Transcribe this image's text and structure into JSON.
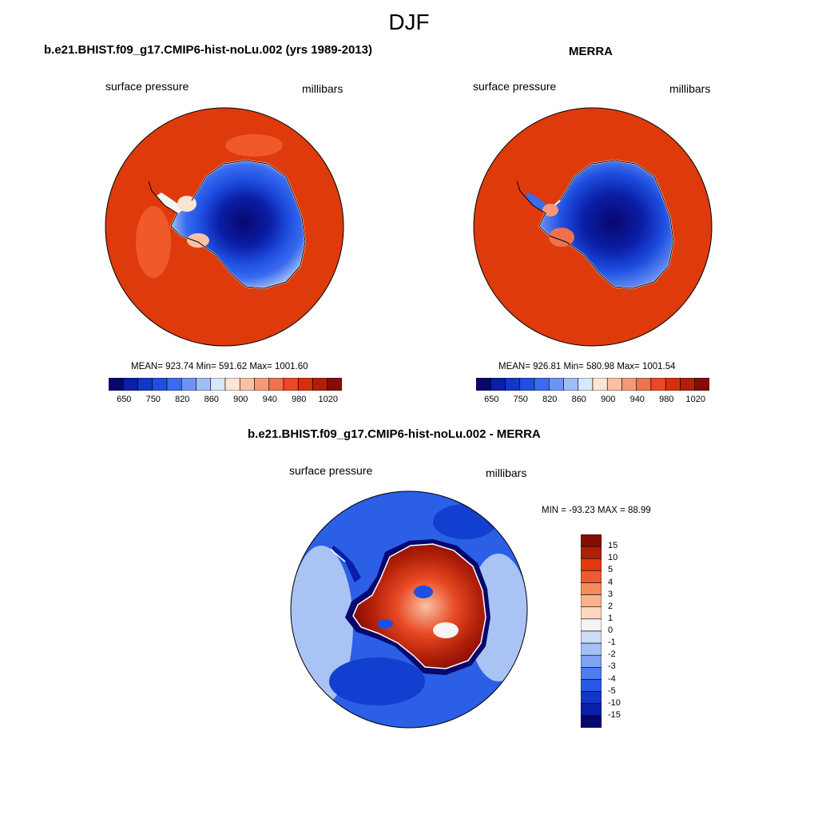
{
  "season": "DJF",
  "panels": [
    {
      "title": "b.e21.BHIST.f09_g17.CMIP6-hist-noLu.002 (yrs 1989-2013)",
      "left_label": "surface pressure",
      "right_label": "millibars",
      "stats": "MEAN= 923.74  Min= 591.62  Max= 1001.60"
    },
    {
      "title": "MERRA",
      "left_label": "surface pressure",
      "right_label": "millibars",
      "stats": "MEAN= 926.81  Min= 580.98  Max= 1001.54"
    },
    {
      "title": "b.e21.BHIST.f09_g17.CMIP6-hist-noLu.002 - MERRA",
      "left_label": "surface pressure",
      "right_label": "millibars",
      "stats": "MIN = -93.23 MAX =  88.99"
    }
  ],
  "abs_colorbar": {
    "colors": [
      "#08076d",
      "#0b1ea8",
      "#1236c8",
      "#1e4fe0",
      "#3a6bf0",
      "#6c93f3",
      "#a0bdf5",
      "#d9e6fb",
      "#fde4d5",
      "#f8c1a4",
      "#f5997a",
      "#f0714f",
      "#e94a25",
      "#d72f0c",
      "#b01f08",
      "#870c06"
    ],
    "tick_labels": [
      "650",
      "750",
      "820",
      "860",
      "900",
      "940",
      "980",
      "1020"
    ]
  },
  "diff_colorbar": {
    "colors": [
      "#870c06",
      "#b01f08",
      "#e03a10",
      "#f05a30",
      "#f88a60",
      "#fbb38e",
      "#fdd7bf",
      "#f4f4f4",
      "#cddcf7",
      "#a5c1f4",
      "#7fa3f2",
      "#4f7cef",
      "#2858e8",
      "#1236c8",
      "#0b1ea8",
      "#08076d"
    ],
    "tick_labels": [
      "15",
      "10",
      "5",
      "4",
      "3",
      "2",
      "1",
      "0",
      "-1",
      "-2",
      "-3",
      "-4",
      "-5",
      "-10",
      "-15"
    ]
  },
  "map_colors": {
    "ocean_high": "#df3a0c",
    "ocean_higher": "#f05a2a",
    "diff_ocean": "#2a5fe6",
    "diff_light": "#a9c3f4",
    "diff_deep": "#123fcf"
  }
}
